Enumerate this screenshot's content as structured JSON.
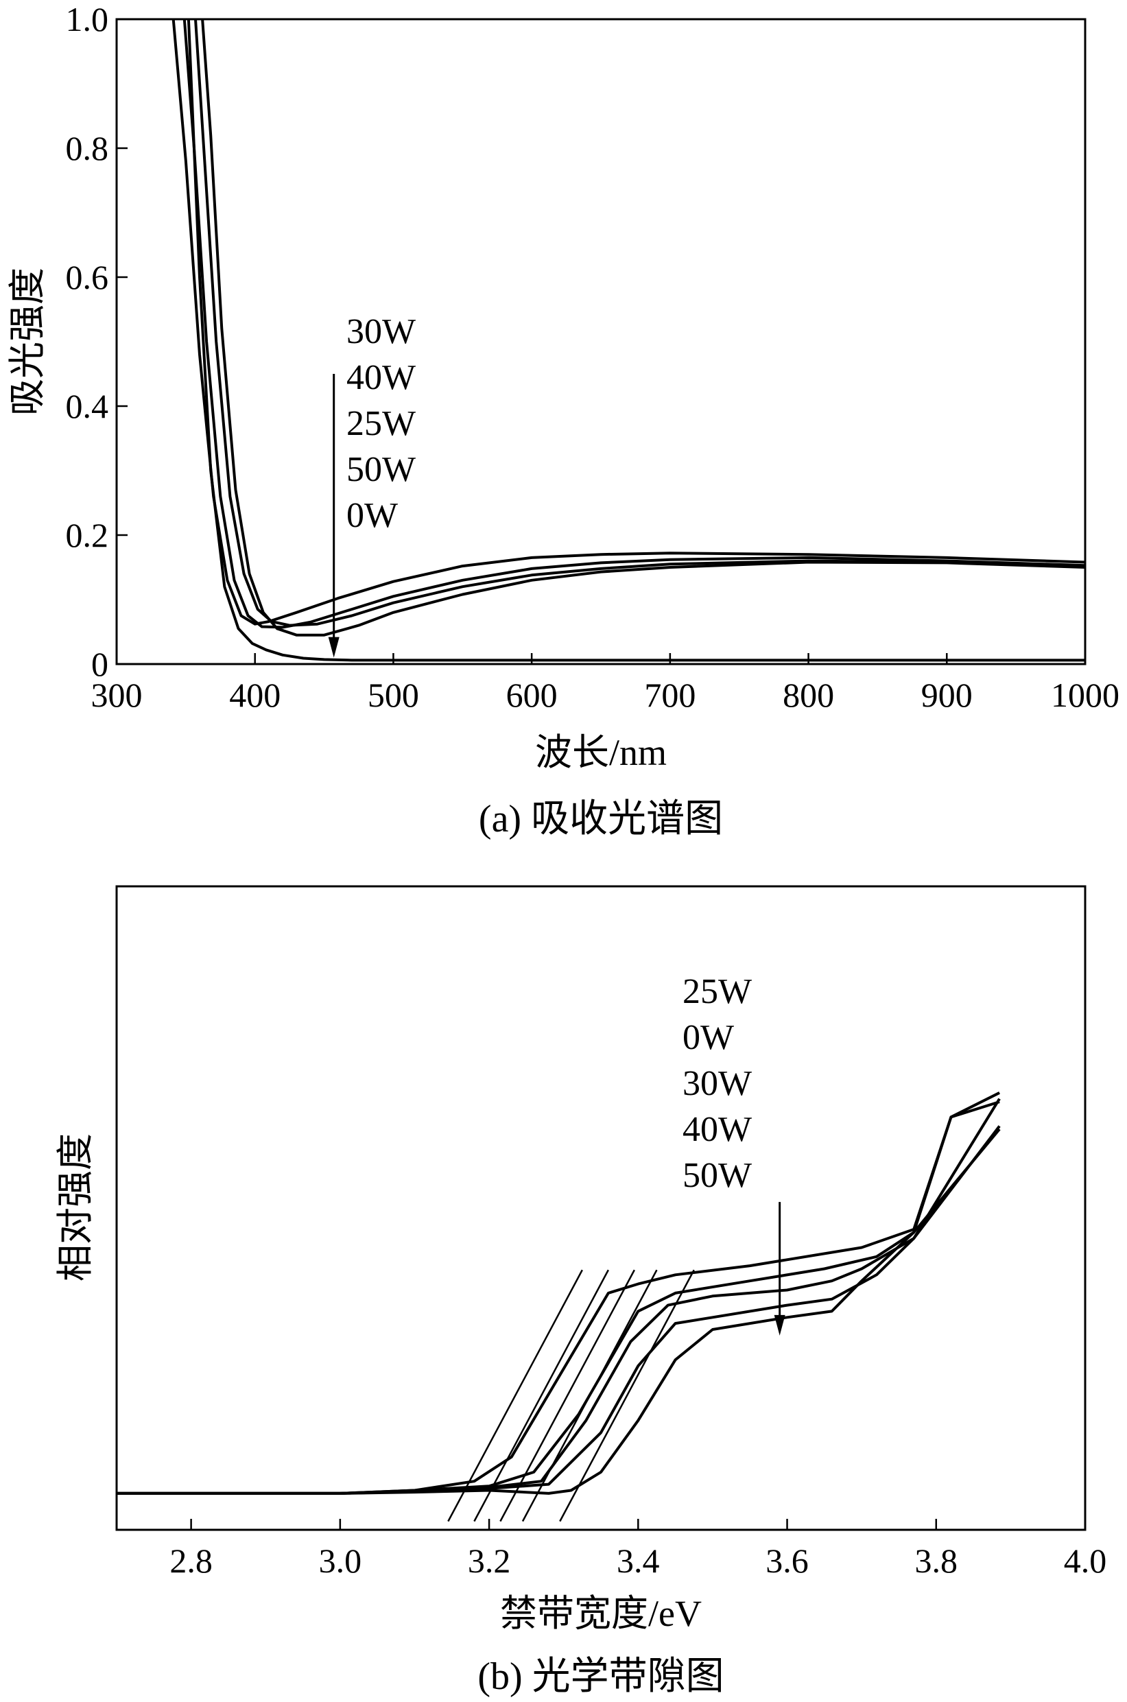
{
  "chart_data": [
    {
      "type": "line",
      "panel": "a",
      "caption": "(a) 吸收光谱图",
      "xlabel": "波长/nm",
      "ylabel": "吸光强度",
      "xlim": [
        300,
        1000
      ],
      "ylim": [
        0,
        1.0
      ],
      "xticks": [
        300,
        400,
        500,
        600,
        700,
        800,
        900,
        1000
      ],
      "yticks": [
        0,
        0.2,
        0.4,
        0.6,
        0.8,
        1.0
      ],
      "ytick_labels": [
        "0",
        "0.2",
        "0.4",
        "0.6",
        "0.8",
        "1.0"
      ],
      "legend_order": [
        "30W",
        "40W",
        "25W",
        "50W",
        "0W"
      ],
      "series": [
        {
          "name": "30W",
          "x": [
            341,
            350,
            360,
            370,
            380,
            390,
            400,
            410,
            430,
            460,
            500,
            550,
            600,
            650,
            700,
            800,
            900,
            1000
          ],
          "y": [
            1.0,
            0.78,
            0.48,
            0.26,
            0.13,
            0.075,
            0.062,
            0.066,
            0.08,
            0.102,
            0.128,
            0.152,
            0.165,
            0.17,
            0.172,
            0.17,
            0.165,
            0.158
          ]
        },
        {
          "name": "40W",
          "x": [
            349,
            356,
            365,
            375,
            385,
            395,
            405,
            420,
            440,
            470,
            500,
            550,
            600,
            650,
            700,
            800,
            900,
            1000
          ],
          "y": [
            1.0,
            0.8,
            0.5,
            0.26,
            0.13,
            0.075,
            0.058,
            0.057,
            0.065,
            0.085,
            0.105,
            0.13,
            0.148,
            0.157,
            0.162,
            0.165,
            0.16,
            0.153
          ]
        },
        {
          "name": "25W",
          "x": [
            357,
            363,
            372,
            382,
            392,
            402,
            412,
            425,
            445,
            470,
            500,
            550,
            600,
            650,
            700,
            800,
            900,
            1000
          ],
          "y": [
            1.0,
            0.8,
            0.5,
            0.26,
            0.14,
            0.085,
            0.066,
            0.06,
            0.062,
            0.075,
            0.095,
            0.12,
            0.138,
            0.148,
            0.155,
            0.16,
            0.158,
            0.152
          ]
        },
        {
          "name": "50W",
          "x": [
            362,
            368,
            376,
            386,
            396,
            406,
            416,
            430,
            450,
            475,
            500,
            550,
            600,
            650,
            700,
            800,
            900,
            1000
          ],
          "y": [
            1.0,
            0.82,
            0.52,
            0.27,
            0.14,
            0.08,
            0.055,
            0.045,
            0.045,
            0.06,
            0.08,
            0.108,
            0.13,
            0.143,
            0.15,
            0.158,
            0.157,
            0.15
          ]
        },
        {
          "name": "0W",
          "x": [
            352,
            360,
            368,
            378,
            388,
            398,
            408,
            420,
            435,
            450,
            470,
            500,
            600,
            700,
            800,
            900,
            1000
          ],
          "y": [
            1.0,
            0.6,
            0.3,
            0.12,
            0.055,
            0.032,
            0.022,
            0.014,
            0.009,
            0.007,
            0.006,
            0.006,
            0.006,
            0.006,
            0.006,
            0.006,
            0.006
          ]
        }
      ],
      "annotation": {
        "type": "arrow",
        "x": 457,
        "y_from": 0.45,
        "y_to": 0.01
      }
    },
    {
      "type": "line",
      "panel": "b",
      "caption": "(b) 光学带隙图",
      "xlabel": "禁带宽度/eV",
      "ylabel": "相对强度",
      "xlim": [
        2.7,
        4.0
      ],
      "ylim": [
        -0.06,
        1.0
      ],
      "xticks": [
        2.8,
        3.0,
        3.2,
        3.4,
        3.6,
        3.8,
        4.0
      ],
      "xtick_labels": [
        "2.8",
        "3.0",
        "3.2",
        "3.4",
        "3.6",
        "3.8",
        "4.0"
      ],
      "legend_order": [
        "25W",
        "0W",
        "30W",
        "40W",
        "50W"
      ],
      "series": [
        {
          "name": "25W",
          "x": [
            2.7,
            3.0,
            3.1,
            3.18,
            3.23,
            3.36,
            3.4,
            3.45,
            3.55,
            3.7,
            3.77,
            3.82,
            3.885
          ],
          "y": [
            0.0,
            0.0,
            0.005,
            0.02,
            0.06,
            0.33,
            0.345,
            0.36,
            0.375,
            0.405,
            0.435,
            0.62,
            0.66
          ]
        },
        {
          "name": "0W",
          "x": [
            2.7,
            3.0,
            3.1,
            3.2,
            3.26,
            3.32,
            3.4,
            3.45,
            3.55,
            3.65,
            3.72,
            3.77,
            3.82,
            3.885
          ],
          "y": [
            0.0,
            0.0,
            0.005,
            0.012,
            0.035,
            0.13,
            0.3,
            0.33,
            0.35,
            0.37,
            0.39,
            0.43,
            0.62,
            0.645
          ]
        },
        {
          "name": "30W",
          "x": [
            2.7,
            3.0,
            3.1,
            3.2,
            3.27,
            3.33,
            3.39,
            3.44,
            3.5,
            3.6,
            3.66,
            3.7,
            3.77,
            3.885
          ],
          "y": [
            0.0,
            0.0,
            0.003,
            0.01,
            0.02,
            0.12,
            0.25,
            0.31,
            0.325,
            0.335,
            0.35,
            0.37,
            0.42,
            0.605
          ]
        },
        {
          "name": "40W",
          "x": [
            2.7,
            3.0,
            3.1,
            3.2,
            3.28,
            3.35,
            3.4,
            3.45,
            3.5,
            3.6,
            3.66,
            3.72,
            3.77,
            3.885
          ],
          "y": [
            0.0,
            0.0,
            0.003,
            0.008,
            0.015,
            0.1,
            0.21,
            0.28,
            0.29,
            0.31,
            0.32,
            0.36,
            0.42,
            0.65
          ]
        },
        {
          "name": "50W",
          "x": [
            2.7,
            3.0,
            3.1,
            3.2,
            3.28,
            3.31,
            3.35,
            3.4,
            3.45,
            3.5,
            3.6,
            3.66,
            3.7,
            3.77,
            3.885
          ],
          "y": [
            0.0,
            0.0,
            0.002,
            0.005,
            0.0,
            0.005,
            0.035,
            0.12,
            0.22,
            0.27,
            0.29,
            0.3,
            0.35,
            0.43,
            0.6
          ]
        }
      ],
      "tangent_x_intercepts": [
        3.165,
        3.2,
        3.235,
        3.265,
        3.315
      ],
      "annotation": {
        "type": "arrow",
        "x": 3.59,
        "y_from": 0.48,
        "y_to": 0.26
      }
    }
  ]
}
